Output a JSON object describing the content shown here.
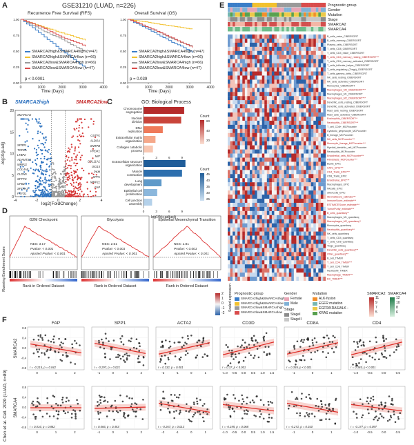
{
  "panels": {
    "a": "A",
    "b": "B",
    "c": "C",
    "d": "D",
    "e": "E",
    "f": "F"
  },
  "top_title": "GSE31210 (LUAD, n=226)",
  "km": {
    "rfs_title": "Recurrence Free Survival (RFS)",
    "os_title": "Overall Survival (OS)",
    "ylabel": "Survival probability",
    "xlabel": "Time (Days)",
    "xticks": [
      "0",
      "1000",
      "2000",
      "3000",
      "4000"
    ],
    "yticks": [
      "1.00",
      "0.75",
      "0.50",
      "0.25",
      "0.00"
    ],
    "rfs_p": "p < 0.0001",
    "os_p": "p = 0.039",
    "groups": [
      {
        "label": "SMARCA2high&SMARCA4high (n=47)",
        "color": "#3a7dc8"
      },
      {
        "label": "SMARCA2high&SMARCA4low (n=66)",
        "color": "#f2c12e"
      },
      {
        "label": "SMARCA2low&SMARCA4high (n=66)",
        "color": "#9a9a9a"
      },
      {
        "label": "SMARCA2low&SMARCA4low (n=47)",
        "color": "#d94b4b"
      }
    ]
  },
  "volcano": {
    "left_label": "SMARCA2high",
    "right_label": "SMARCA2low",
    "xlabel": "log2(FoldChange)",
    "ylabel": "-log10(p.adj)",
    "xticks": [
      "-4",
      "-2",
      "0",
      "2",
      "4"
    ],
    "yticks": [
      "0",
      "5",
      "10",
      "15",
      "20"
    ],
    "left_genes": [
      "SMARCA2",
      "SFRP1",
      "TOP2A",
      "LTBP2",
      "ADAMTS5",
      "MMP11",
      "COL4A5",
      "CLDN5",
      "SFTPC",
      "CPB2",
      "SFTPA1",
      "FXYD1"
    ],
    "right_genes": [
      "GSTP1",
      "ALDOA",
      "SNRPB",
      "PRDX1",
      "MIF",
      "COL11A1",
      "ISG15",
      "PKM",
      "SPP1",
      "MMP11",
      "FAP"
    ]
  },
  "go": {
    "title": "GO: Biological Process",
    "bars_top": [
      {
        "term": "Chromosome segregation",
        "v": 9.5
      },
      {
        "term": "Nuclear division",
        "v": 8.8
      },
      {
        "term": "DNA replication",
        "v": 4.5
      },
      {
        "term": "Extracellular matrix organization",
        "v": 2.8
      },
      {
        "term": "Collagen catabolic process",
        "v": 2.2
      }
    ],
    "bars_bottom": [
      {
        "term": "Extracellular structure organization",
        "v": 9.8
      },
      {
        "term": "Muscle contraction",
        "v": 9.0
      },
      {
        "term": "Lung development",
        "v": 4.2
      },
      {
        "term": "Epithelial cell proliferation",
        "v": 3.2
      },
      {
        "term": "Cell junction assembly",
        "v": 2.0
      }
    ],
    "xlabel": "-log10(p.adjust)",
    "xticks": [
      "0",
      "3",
      "6",
      "9"
    ],
    "count_label": "Count",
    "count_top": [
      "60",
      "40",
      "20"
    ],
    "count_bottom": [
      "45",
      "40",
      "35",
      "30",
      "25"
    ]
  },
  "gsea": {
    "ylabel": "Running Enrichment Score",
    "xlabel": "Rank in Ordered Dataset",
    "panels": [
      {
        "title": "G2M Checkpoint",
        "nes": "NES: 3.17",
        "p": "Pvalue: < 0.001",
        "padj": "Ajusted Pvalue: < 0.001"
      },
      {
        "title": "Glycolysis",
        "nes": "NES: 2.51",
        "p": "Pvalue: < 0.001",
        "padj": "Ajusted Pvalue: < 0.001"
      },
      {
        "title": "Epithelial Mesenchymal Transition",
        "nes": "NES: 1.81",
        "p": "Pvalue: < 0.001",
        "padj": "Ajusted Pvalue: < 0.001"
      }
    ]
  },
  "heatmap": {
    "annot": [
      "Prognostic group",
      "Gender",
      "Mutation",
      "Stage",
      "SMARCA2",
      "SMARCA4"
    ],
    "rows": [
      "B_cells_naive_CIBERSORT",
      "B_cells_memory_CIBERSORT",
      "Plasma_cells_CIBERSORT",
      "T_cells_CD8_CIBERSORT",
      "T_cells_CD4_naive_CIBERSORT",
      "T_cells_CD4_memory_resting_CIBERSORT***",
      "T_cells_CD4_memory_activated_CIBERSORT",
      "T_cells_follicular_helper_CIBERSORT",
      "T_cells_regulatory_(Tregs)_CIBERSORT",
      "T_cells_gamma_delta_CIBERSORT",
      "NK_cells_resting_CIBERSORT",
      "NK_cells_activated_CIBERSORT",
      "Monocytes_CIBERSORT",
      "Macrophages_M0_CIBERSORT***",
      "Macrophages_M1_CIBERSORT",
      "Macrophages_M2_CIBERSORT***",
      "Dendritic_cells_resting_CIBERSORT",
      "Dendritic_cells_activated_CIBERSORT",
      "Mast_cells_resting_CIBERSORT",
      "Mast_cells_activated_CIBERSORT",
      "Eosinophils_CIBERSORT**",
      "Neutrophils_CIBERSORT***",
      "T_cell_CD8+_MCPcounter",
      "Cytotoxic_lymphocyte_MCPcounter",
      "B_lineage_MCPcounter",
      "NK_cells_MCPcounter***",
      "Monocytic_lineage_MCPcounter***",
      "Myeloid_dendritic_cell_MCPcounter",
      "Neutrophils_MCPcounter",
      "Endothelial_cells_MCPcounter***",
      "Fibroblasts_MCPcounter***",
      "Bcells_EPIC",
      "CAFs_EPIC***",
      "CD4_Tcells_EPIC***",
      "CD8_Tcells_EPIC",
      "Endothelial_EPIC***",
      "Macrophages_EPIC",
      "NKcells_EPIC",
      "otherCells_EPIC",
      "StromalScore_estimate***",
      "ImmuneScore_estimate***",
      "ESTIMATEScore_estimate***",
      "TumorPurity_estimate***",
      "B_cells_quantiseq**",
      "Macrophages_M1_quantiseq",
      "Macrophages_M2_quantiseq**",
      "Monocytes_quantiseq",
      "Neutrophils_quantiseq***",
      "NK_cells_quantiseq",
      "T_cells_CD4_quantiseq",
      "T_cells_CD8_quantiseq",
      "Tregs_quantiseq",
      "Dendritic_cells_quantiseq***",
      "Other_quantiseq***",
      "B_cell_TIMER",
      "T_cell_CD4_TIMER***",
      "T_cell_CD8_TIMER",
      "Neutrophil_TIMER",
      "Macrophage_TIMER***",
      "DC_TIMER***"
    ],
    "legend": {
      "scaled_label": "Scaled expression",
      "scaled_ticks": [
        "2",
        "1",
        "0",
        "-1",
        "-2"
      ],
      "prog_label": "Prognostic group",
      "prog_items": [
        "SMARCA2high&SMARCA4high",
        "SMARCA2high&SMARCA4low",
        "SMARCA2low&SMARCA4high",
        "SMARCA2low&SMARCA4low"
      ],
      "gender_label": "Gender",
      "gender_items": [
        "Female",
        "Male"
      ],
      "stage_label": "Stage",
      "stage_items": [
        "StageI",
        "StageII"
      ],
      "mut_label": "Mutation",
      "mut_items": [
        "ALK-fusion",
        "EGFR mutation",
        "EGFR/KRAS/ALK -",
        "KRAS mutation"
      ],
      "s2_label": "SMARCA2",
      "s2_ticks": [
        "11",
        "9",
        "7",
        "5"
      ],
      "s4_label": "SMARCA4",
      "s4_ticks": [
        "12",
        "10",
        "8",
        "6"
      ]
    },
    "prog_colors": [
      "#3a7dc8",
      "#f2c12e",
      "#9a9a9a",
      "#d94b4b"
    ]
  },
  "scatter": {
    "side_label": "Chen et al. Cell. 2020 (LUAD, n=89)",
    "row_labels": [
      "SMARCA2",
      "SMARCA4"
    ],
    "cols": [
      "FAP",
      "SPP1",
      "ACTA2",
      "CD3D",
      "CD8A",
      "CD4"
    ],
    "stats_top": [
      "r = -0.215, p = 0.042",
      "r = -0.297, p = 0.021",
      "r = 0.332, p = 0.001",
      "r = 0.37, p < 0.001",
      "r = 0.359, p < 0.001",
      "r = 0.385, p < 0.001"
    ],
    "stats_bottom": [
      "r = 0.016, p = 0.882",
      "r = 0.066, p = 0.453",
      "r = -0.267, p = 0.013",
      "r = -0.195, p = 0.068",
      "r = -0.271, p = 0.010",
      "r = -0.177, p = 0.097"
    ],
    "slopes_top": [
      -0.35,
      -0.4,
      0.45,
      0.5,
      0.45,
      0.5
    ],
    "slopes_bottom": [
      0.0,
      0.05,
      -0.35,
      -0.25,
      -0.35,
      -0.25
    ],
    "xticks": [
      [
        "0",
        "1",
        "2"
      ],
      [
        "-1",
        "0",
        "1",
        "2"
      ],
      [
        "-2",
        "-1",
        "0",
        "1"
      ],
      [
        "-1.0",
        "-0.5",
        "0.0",
        "0.5",
        "1.0",
        "1.5"
      ],
      [
        "-1",
        "0",
        "1"
      ],
      [
        "-1.0",
        "-0.5",
        "0.0",
        "0.5"
      ]
    ],
    "yticks": [
      "0.8",
      "0.4",
      "0.0",
      "-0.4",
      "-0.8"
    ]
  }
}
